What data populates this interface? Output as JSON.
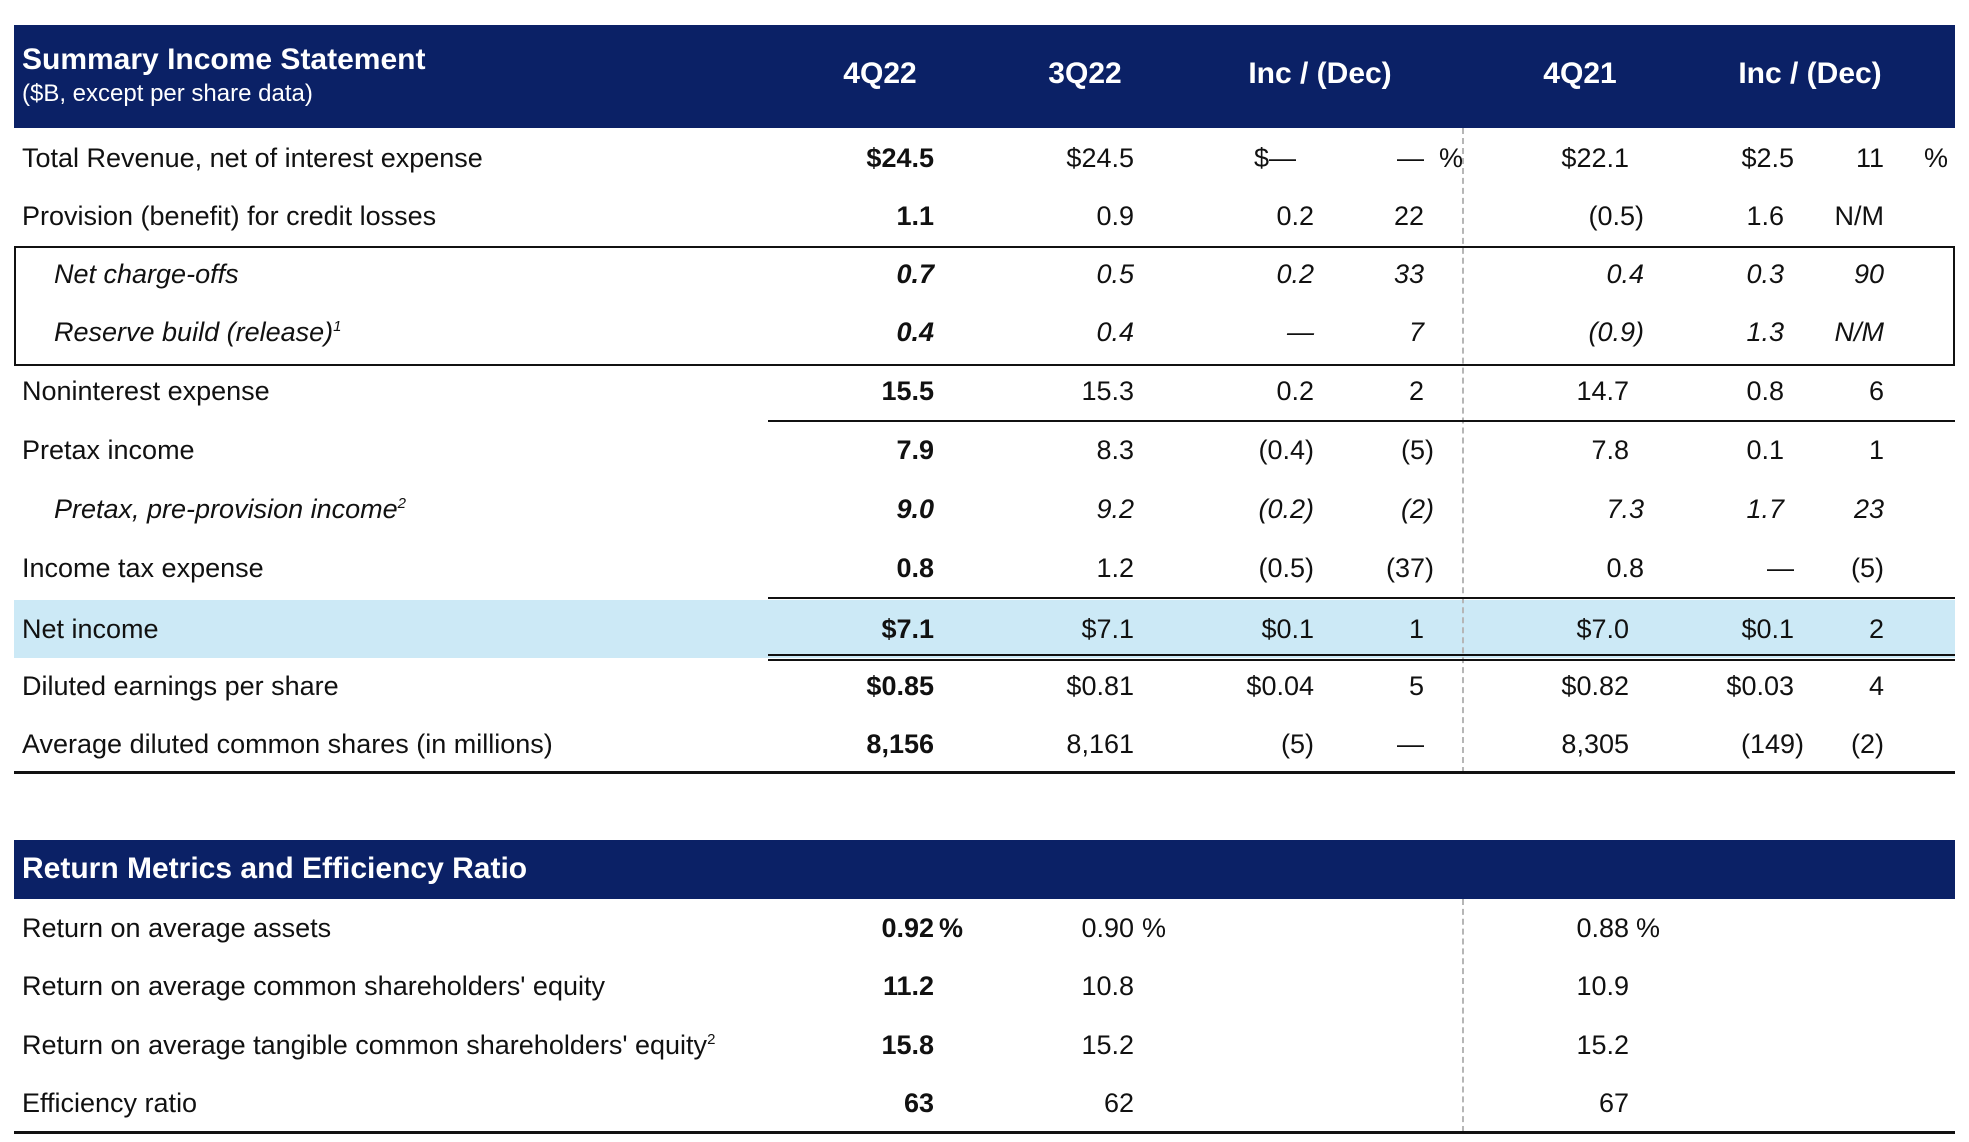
{
  "income_statement": {
    "title": "Summary Income Statement",
    "subtitle": "($B, except per share data)",
    "columns": [
      "4Q22",
      "3Q22",
      "Inc / (Dec)",
      "4Q21",
      "Inc / (Dec)"
    ],
    "rows": [
      {
        "label": "Total Revenue, net of interest expense",
        "v1": "$24.5",
        "v2": "$24.5",
        "d1": "$—",
        "p1": "—",
        "p1_pct": "%",
        "v3": "$22.1",
        "d2": "$2.5",
        "p2": "11",
        "p2_pct": "%"
      },
      {
        "label": "Provision (benefit) for credit losses",
        "v1": "1.1",
        "v2": "0.9",
        "d1": "0.2",
        "p1": "22",
        "v3": "(0.5)",
        "d2": "1.6",
        "p2": "N/M"
      },
      {
        "label": "Net charge-offs",
        "v1": "0.7",
        "v2": "0.5",
        "d1": "0.2",
        "p1": "33",
        "v3": "0.4",
        "d2": "0.3",
        "p2": "90"
      },
      {
        "label": "Reserve build (release)",
        "sup": "1",
        "v1": "0.4",
        "v2": "0.4",
        "d1": "—",
        "p1": "7",
        "v3": "(0.9)",
        "d2": "1.3",
        "p2": "N/M"
      },
      {
        "label": "Noninterest expense",
        "v1": "15.5",
        "v2": "15.3",
        "d1": "0.2",
        "p1": "2",
        "v3": "14.7",
        "d2": "0.8",
        "p2": "6"
      },
      {
        "label": "Pretax income",
        "v1": "7.9",
        "v2": "8.3",
        "d1": "(0.4)",
        "p1": "(5)",
        "v3": "7.8",
        "d2": "0.1",
        "p2": "1"
      },
      {
        "label": "Pretax, pre-provision income",
        "sup": "2",
        "v1": "9.0",
        "v2": "9.2",
        "d1": "(0.2)",
        "p1": "(2)",
        "v3": "7.3",
        "d2": "1.7",
        "p2": "23"
      },
      {
        "label": "Income tax expense",
        "v1": "0.8",
        "v2": "1.2",
        "d1": "(0.5)",
        "p1": "(37)",
        "v3": "0.8",
        "d2": "—",
        "p2": "(5)"
      },
      {
        "label": "Net income",
        "v1": "$7.1",
        "v2": "$7.1",
        "d1": "$0.1",
        "p1": "1",
        "v3": "$7.0",
        "d2": "$0.1",
        "p2": "2"
      },
      {
        "label": "Diluted earnings per share",
        "v1": "$0.85",
        "v2": "$0.81",
        "d1": "$0.04",
        "p1": "5",
        "v3": "$0.82",
        "d2": "$0.03",
        "p2": "4"
      },
      {
        "label": "Average diluted common shares (in millions)",
        "v1": "8,156",
        "v2": "8,161",
        "d1": "(5)",
        "p1": "—",
        "v3": "8,305",
        "d2": "(149)",
        "p2": "(2)"
      }
    ]
  },
  "return_metrics": {
    "title": "Return Metrics and Efficiency Ratio",
    "rows": [
      {
        "label": "Return on average assets",
        "v1": "0.92",
        "v1_pct": "%",
        "v2": "0.90",
        "v2_pct": "%",
        "v3": "0.88",
        "v3_pct": "%"
      },
      {
        "label": "Return on average common shareholders' equity",
        "v1": "11.2",
        "v2": "10.8",
        "v3": "10.9"
      },
      {
        "label": "Return on average tangible common shareholders' equity",
        "sup": "2",
        "v1": "15.8",
        "v2": "15.2",
        "v3": "15.2"
      },
      {
        "label": "Efficiency ratio",
        "v1": "63",
        "v2": "62",
        "v3": "67"
      }
    ]
  },
  "colors": {
    "header_bg": "#0b2166",
    "highlight": "#cce9f6"
  }
}
